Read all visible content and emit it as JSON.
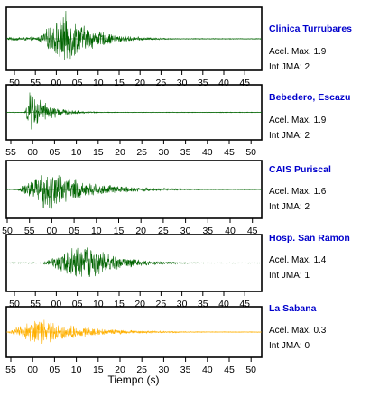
{
  "xlabel": "Tiempo (s)",
  "chart_data": [
    {
      "type": "line",
      "station": "Clinica Turrubares",
      "accel_label": "Acel. Max. 1.9",
      "jma_label": "Int JMA: 2",
      "color": "#006400",
      "tick_labels": [
        "50",
        "55",
        "00",
        "05",
        "10",
        "15",
        "20",
        "25",
        "30",
        "35",
        "40",
        "45"
      ],
      "burst": {
        "onset": 0.12,
        "peak": 0.23,
        "amplitude": 0.95,
        "decay": 0.11,
        "pre_noise": 0.06
      }
    },
    {
      "type": "line",
      "station": "Bebedero, Escazu",
      "accel_label": "Acel. Max. 1.9",
      "jma_label": "Int JMA: 2",
      "color": "#006400",
      "tick_labels": [
        "55",
        "00",
        "05",
        "10",
        "15",
        "20",
        "25",
        "30",
        "35",
        "40",
        "45",
        "50"
      ],
      "burst": {
        "onset": 0.07,
        "peak": 0.09,
        "amplitude": 0.95,
        "decay": 0.07,
        "pre_noise": 0.01
      }
    },
    {
      "type": "line",
      "station": "CAIS Puriscal",
      "accel_label": "Acel. Max. 1.6",
      "jma_label": "Int JMA: 2",
      "color": "#006400",
      "tick_labels": [
        "50",
        "55",
        "00",
        "05",
        "10",
        "15",
        "20",
        "25",
        "30",
        "35",
        "40",
        "45"
      ],
      "burst": {
        "onset": 0.04,
        "peak": 0.16,
        "amplitude": 0.85,
        "decay": 0.16,
        "pre_noise": 0.02
      }
    },
    {
      "type": "line",
      "station": "Hosp. San Ramon",
      "accel_label": "Acel. Max. 1.4",
      "jma_label": "Int JMA: 1",
      "color": "#006400",
      "tick_labels": [
        "50",
        "55",
        "00",
        "05",
        "10",
        "15",
        "20",
        "25",
        "30",
        "35",
        "40",
        "45"
      ],
      "burst": {
        "onset": 0.14,
        "peak": 0.3,
        "amplitude": 0.85,
        "decay": 0.12,
        "pre_noise": 0.02
      }
    },
    {
      "type": "line",
      "station": "La Sabana",
      "accel_label": "Acel. Max. 0.3",
      "jma_label": "Int JMA: 0",
      "color": "#ffb000",
      "tick_labels": [
        "55",
        "00",
        "05",
        "10",
        "15",
        "20",
        "25",
        "30",
        "35",
        "40",
        "45",
        "50"
      ],
      "burst": {
        "onset": 0.0,
        "peak": 0.12,
        "amplitude": 0.65,
        "decay": 0.18,
        "pre_noise": 0.0
      }
    }
  ]
}
